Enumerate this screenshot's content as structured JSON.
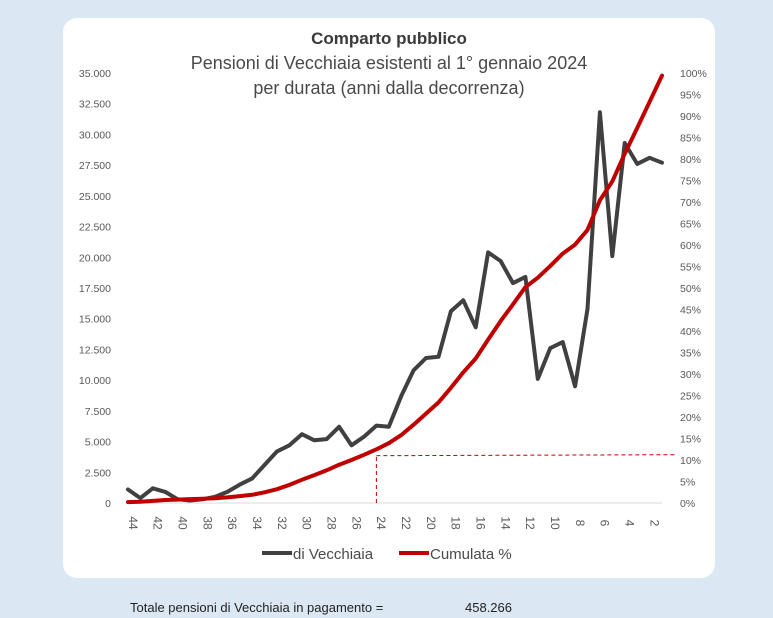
{
  "chart_data": {
    "type": "line",
    "title": "Comparto pubblico",
    "subtitle_lines": [
      "Pensioni di Vecchiaia esistenti al 1° gennaio 2024",
      "per durata (anni dalla decorrenza)"
    ],
    "x": [
      44,
      43,
      42,
      41,
      40,
      39,
      38,
      37,
      36,
      35,
      34,
      33,
      32,
      31,
      30,
      29,
      28,
      27,
      26,
      25,
      24,
      23,
      22,
      21,
      20,
      19,
      18,
      17,
      16,
      15,
      14,
      13,
      12,
      11,
      10,
      9,
      8,
      7,
      6,
      5,
      4,
      3,
      2,
      1
    ],
    "x_tick_labels": [
      "44",
      "42",
      "40",
      "38",
      "36",
      "34",
      "32",
      "30",
      "28",
      "26",
      "24",
      "22",
      "20",
      "18",
      "16",
      "14",
      "12",
      "10",
      "8",
      "6",
      "4",
      "2"
    ],
    "y_left_ticks": [
      "0",
      "2.500",
      "5.000",
      "7.500",
      "10.000",
      "12.500",
      "15.000",
      "17.500",
      "20.000",
      "22.500",
      "25.000",
      "27.500",
      "30.000",
      "32.500",
      "35.000"
    ],
    "y_right_ticks": [
      "0%",
      "5%",
      "10%",
      "15%",
      "20%",
      "25%",
      "30%",
      "35%",
      "40%",
      "45%",
      "50%",
      "55%",
      "60%",
      "65%",
      "70%",
      "75%",
      "80%",
      "85%",
      "90%",
      "95%",
      "100%"
    ],
    "ylim_left": [
      0,
      35000
    ],
    "ylim_right": [
      0,
      100
    ],
    "series": [
      {
        "name": "di Vecchiaia",
        "axis": "left",
        "color": "#404040",
        "values": [
          1100,
          400,
          1200,
          900,
          300,
          200,
          300,
          500,
          900,
          1500,
          2000,
          3100,
          4200,
          4700,
          5600,
          5100,
          5200,
          6200,
          4700,
          5400,
          6300,
          6200,
          8700,
          10800,
          11800,
          11900,
          15600,
          16500,
          14300,
          20400,
          19700,
          17900,
          18400,
          10100,
          12600,
          13100,
          9500,
          15800,
          31800,
          20100,
          29300,
          27600,
          28100,
          27700
        ]
      },
      {
        "name": "Cumulata %",
        "axis": "right",
        "color": "#c00000",
        "values": [
          0.2,
          0.3,
          0.5,
          0.7,
          0.8,
          0.9,
          1.0,
          1.1,
          1.3,
          1.6,
          1.9,
          2.5,
          3.2,
          4.2,
          5.4,
          6.5,
          7.6,
          8.9,
          10.0,
          11.2,
          12.5,
          13.9,
          15.8,
          18.2,
          20.8,
          23.4,
          26.8,
          30.4,
          33.6,
          38.0,
          42.3,
          46.2,
          50.2,
          52.4,
          55.1,
          58.0,
          60.1,
          63.5,
          70.4,
          74.8,
          81.2,
          87.2,
          93.3,
          99.4
        ]
      }
    ],
    "reference_line": {
      "x": 24,
      "y_right_percent": 11,
      "style": "dashed",
      "color": "#c00000"
    },
    "legend_position": "bottom",
    "grid": false
  },
  "footer": {
    "label": "Totale pensioni di Vecchiaia in pagamento =",
    "value": "458.266"
  }
}
